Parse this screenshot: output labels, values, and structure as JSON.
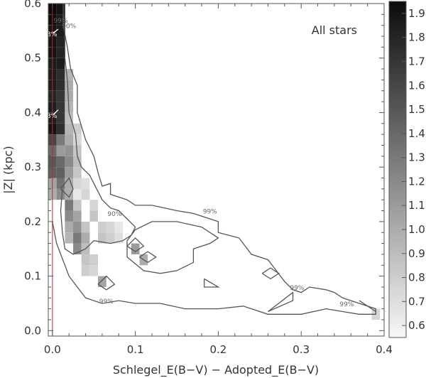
{
  "chart_data": {
    "type": "heatmap",
    "title": "",
    "annotation": "All stars",
    "xlabel": "Schlegel_E(B−V) − Adopted_E(B−V)",
    "ylabel": "|Z| (kpc)",
    "xlim": [
      -0.005,
      0.4
    ],
    "ylim": [
      -0.01,
      0.6
    ],
    "x_ticks": [
      "0.0",
      "0.1",
      "0.2",
      "0.3",
      "0.4"
    ],
    "y_ticks": [
      "0.0",
      "0.1",
      "0.2",
      "0.3",
      "0.4",
      "0.5",
      "0.6"
    ],
    "colorbar": {
      "range": [
        0.55,
        1.95
      ],
      "ticks": [
        "0.6",
        "0.7",
        "0.8",
        "0.9",
        "1.0",
        "1.1",
        "1.2",
        "1.3",
        "1.4",
        "1.5",
        "1.6",
        "1.7",
        "1.8",
        "1.9"
      ]
    },
    "grid": false,
    "cell_size": {
      "dx": 0.01,
      "dz": 0.02
    },
    "cells": [
      {
        "x": 0.0,
        "z": 0.59,
        "v": 1.95
      },
      {
        "x": 0.0,
        "z": 0.57,
        "v": 1.95
      },
      {
        "x": 0.0,
        "z": 0.55,
        "v": 1.9
      },
      {
        "x": 0.0,
        "z": 0.53,
        "v": 1.9
      },
      {
        "x": 0.0,
        "z": 0.51,
        "v": 1.9
      },
      {
        "x": 0.0,
        "z": 0.49,
        "v": 1.85
      },
      {
        "x": 0.0,
        "z": 0.47,
        "v": 1.85
      },
      {
        "x": 0.0,
        "z": 0.45,
        "v": 1.85
      },
      {
        "x": 0.0,
        "z": 0.43,
        "v": 1.8
      },
      {
        "x": 0.0,
        "z": 0.41,
        "v": 1.85
      },
      {
        "x": 0.0,
        "z": 0.39,
        "v": 1.85
      },
      {
        "x": 0.0,
        "z": 0.37,
        "v": 1.9
      },
      {
        "x": 0.0,
        "z": 0.35,
        "v": 1.6
      },
      {
        "x": 0.0,
        "z": 0.33,
        "v": 1.4
      },
      {
        "x": 0.0,
        "z": 0.31,
        "v": 1.5
      },
      {
        "x": 0.0,
        "z": 0.29,
        "v": 1.45
      },
      {
        "x": 0.0,
        "z": 0.27,
        "v": 1.05
      },
      {
        "x": 0.0,
        "z": 0.25,
        "v": 1.0
      },
      {
        "x": 0.01,
        "z": 0.59,
        "v": 1.9
      },
      {
        "x": 0.01,
        "z": 0.57,
        "v": 1.85
      },
      {
        "x": 0.01,
        "z": 0.55,
        "v": 1.85
      },
      {
        "x": 0.01,
        "z": 0.53,
        "v": 1.8
      },
      {
        "x": 0.01,
        "z": 0.51,
        "v": 1.8
      },
      {
        "x": 0.01,
        "z": 0.49,
        "v": 1.85
      },
      {
        "x": 0.01,
        "z": 0.47,
        "v": 1.75
      },
      {
        "x": 0.01,
        "z": 0.45,
        "v": 1.75
      },
      {
        "x": 0.01,
        "z": 0.43,
        "v": 1.7
      },
      {
        "x": 0.01,
        "z": 0.41,
        "v": 1.7
      },
      {
        "x": 0.01,
        "z": 0.39,
        "v": 1.7
      },
      {
        "x": 0.01,
        "z": 0.37,
        "v": 1.75
      },
      {
        "x": 0.01,
        "z": 0.35,
        "v": 1.3
      },
      {
        "x": 0.01,
        "z": 0.33,
        "v": 1.1
      },
      {
        "x": 0.01,
        "z": 0.31,
        "v": 1.4
      },
      {
        "x": 0.01,
        "z": 0.29,
        "v": 1.45
      },
      {
        "x": 0.01,
        "z": 0.27,
        "v": 1.35
      },
      {
        "x": 0.01,
        "z": 0.25,
        "v": 1.2
      },
      {
        "x": 0.02,
        "z": 0.47,
        "v": 0.95
      },
      {
        "x": 0.02,
        "z": 0.45,
        "v": 1.0
      },
      {
        "x": 0.02,
        "z": 0.43,
        "v": 1.0
      },
      {
        "x": 0.02,
        "z": 0.41,
        "v": 0.95
      },
      {
        "x": 0.02,
        "z": 0.39,
        "v": 0.9
      },
      {
        "x": 0.02,
        "z": 0.37,
        "v": 0.95
      },
      {
        "x": 0.02,
        "z": 0.35,
        "v": 1.0
      },
      {
        "x": 0.02,
        "z": 0.33,
        "v": 1.15
      },
      {
        "x": 0.02,
        "z": 0.31,
        "v": 1.2
      },
      {
        "x": 0.02,
        "z": 0.29,
        "v": 1.1
      },
      {
        "x": 0.02,
        "z": 0.27,
        "v": 1.0
      },
      {
        "x": 0.02,
        "z": 0.25,
        "v": 1.0
      },
      {
        "x": 0.02,
        "z": 0.23,
        "v": 1.3
      },
      {
        "x": 0.02,
        "z": 0.21,
        "v": 1.2
      },
      {
        "x": 0.02,
        "z": 0.19,
        "v": 1.0
      },
      {
        "x": 0.02,
        "z": 0.17,
        "v": 0.95
      },
      {
        "x": 0.03,
        "z": 0.37,
        "v": 0.8
      },
      {
        "x": 0.03,
        "z": 0.35,
        "v": 0.75
      },
      {
        "x": 0.03,
        "z": 0.33,
        "v": 0.85
      },
      {
        "x": 0.03,
        "z": 0.31,
        "v": 0.9
      },
      {
        "x": 0.03,
        "z": 0.29,
        "v": 0.85
      },
      {
        "x": 0.03,
        "z": 0.27,
        "v": 0.75
      },
      {
        "x": 0.03,
        "z": 0.25,
        "v": 0.65
      },
      {
        "x": 0.03,
        "z": 0.23,
        "v": 0.85
      },
      {
        "x": 0.03,
        "z": 0.21,
        "v": 1.05
      },
      {
        "x": 0.03,
        "z": 0.19,
        "v": 1.15
      },
      {
        "x": 0.03,
        "z": 0.17,
        "v": 1.3
      },
      {
        "x": 0.03,
        "z": 0.15,
        "v": 1.2
      },
      {
        "x": 0.04,
        "z": 0.27,
        "v": 0.7
      },
      {
        "x": 0.04,
        "z": 0.25,
        "v": 0.75
      },
      {
        "x": 0.04,
        "z": 0.19,
        "v": 0.85
      },
      {
        "x": 0.04,
        "z": 0.17,
        "v": 1.0
      },
      {
        "x": 0.04,
        "z": 0.15,
        "v": 0.9
      },
      {
        "x": 0.04,
        "z": 0.13,
        "v": 0.85
      },
      {
        "x": 0.04,
        "z": 0.11,
        "v": 0.8
      },
      {
        "x": 0.05,
        "z": 0.23,
        "v": 0.75
      },
      {
        "x": 0.05,
        "z": 0.21,
        "v": 0.85
      },
      {
        "x": 0.05,
        "z": 0.13,
        "v": 0.8
      },
      {
        "x": 0.05,
        "z": 0.11,
        "v": 0.75
      },
      {
        "x": 0.06,
        "z": 0.19,
        "v": 0.8
      },
      {
        "x": 0.06,
        "z": 0.17,
        "v": 0.85
      },
      {
        "x": 0.06,
        "z": 0.09,
        "v": 1.05
      },
      {
        "x": 0.07,
        "z": 0.19,
        "v": 0.75
      },
      {
        "x": 0.07,
        "z": 0.17,
        "v": 0.8
      },
      {
        "x": 0.08,
        "z": 0.19,
        "v": 0.65
      },
      {
        "x": 0.08,
        "z": 0.17,
        "v": 0.7
      },
      {
        "x": 0.1,
        "z": 0.15,
        "v": 1.1
      },
      {
        "x": 0.11,
        "z": 0.13,
        "v": 1.0
      },
      {
        "x": 0.39,
        "z": 0.03,
        "v": 0.75
      }
    ],
    "contours": [
      {
        "label": "99%",
        "labels_at": [
          [
            0.19,
            0.215
          ],
          [
            0.295,
            0.075
          ],
          [
            0.065,
            0.05
          ],
          [
            0.355,
            0.045
          ],
          [
            0.01,
            0.565
          ]
        ],
        "paths": [
          [
            [
              0.013,
              0.6
            ],
            [
              0.013,
              0.56
            ],
            [
              0.018,
              0.52
            ],
            [
              0.022,
              0.48
            ],
            [
              0.03,
              0.45
            ],
            [
              0.03,
              0.4
            ],
            [
              0.04,
              0.35
            ],
            [
              0.05,
              0.32
            ],
            [
              0.055,
              0.29
            ],
            [
              0.06,
              0.265
            ],
            [
              0.07,
              0.27
            ],
            [
              0.07,
              0.25
            ],
            [
              0.09,
              0.24
            ],
            [
              0.1,
              0.23
            ],
            [
              0.12,
              0.23
            ],
            [
              0.15,
              0.22
            ],
            [
              0.17,
              0.215
            ],
            [
              0.2,
              0.2
            ],
            [
              0.2,
              0.18
            ],
            [
              0.225,
              0.17
            ],
            [
              0.23,
              0.16
            ],
            [
              0.24,
              0.14
            ],
            [
              0.26,
              0.13
            ],
            [
              0.27,
              0.11
            ],
            [
              0.28,
              0.09
            ],
            [
              0.29,
              0.075
            ],
            [
              0.3,
              0.07
            ],
            [
              0.31,
              0.08
            ],
            [
              0.33,
              0.075
            ],
            [
              0.34,
              0.07
            ],
            [
              0.35,
              0.06
            ],
            [
              0.37,
              0.05
            ],
            [
              0.39,
              0.04
            ],
            [
              0.39,
              0.03
            ],
            [
              0.37,
              0.03
            ],
            [
              0.35,
              0.035
            ],
            [
              0.33,
              0.04
            ],
            [
              0.3,
              0.03
            ],
            [
              0.26,
              0.03
            ],
            [
              0.23,
              0.045
            ],
            [
              0.2,
              0.04
            ],
            [
              0.16,
              0.04
            ],
            [
              0.13,
              0.05
            ],
            [
              0.1,
              0.05
            ],
            [
              0.08,
              0.055
            ],
            [
              0.06,
              0.05
            ],
            [
              0.04,
              0.06
            ],
            [
              0.03,
              0.08
            ],
            [
              0.02,
              0.1
            ],
            [
              0.015,
              0.12
            ],
            [
              0.01,
              0.14
            ],
            [
              0.005,
              0.16
            ],
            [
              0.0,
              0.2
            ]
          ],
          [
            [
              0.09,
              0.135
            ],
            [
              0.11,
              0.11
            ],
            [
              0.13,
              0.105
            ],
            [
              0.15,
              0.11
            ],
            [
              0.17,
              0.125
            ],
            [
              0.17,
              0.15
            ],
            [
              0.19,
              0.16
            ],
            [
              0.2,
              0.17
            ],
            [
              0.18,
              0.19
            ],
            [
              0.15,
              0.2
            ],
            [
              0.12,
              0.2
            ],
            [
              0.1,
              0.185
            ],
            [
              0.09,
              0.165
            ],
            [
              0.09,
              0.135
            ]
          ],
          [
            [
              0.183,
              0.095
            ],
            [
              0.2,
              0.08
            ],
            [
              0.183,
              0.08
            ],
            [
              0.183,
              0.095
            ]
          ],
          [
            [
              0.26,
              0.035
            ],
            [
              0.29,
              0.07
            ],
            [
              0.29,
              0.055
            ],
            [
              0.26,
              0.035
            ]
          ],
          [
            [
              0.253,
              0.105
            ],
            [
              0.263,
              0.115
            ],
            [
              0.273,
              0.105
            ],
            [
              0.263,
              0.095
            ],
            [
              0.253,
              0.105
            ]
          ],
          [
            [
              0.37,
              0.055
            ],
            [
              0.385,
              0.04
            ],
            [
              0.39,
              0.035
            ]
          ]
        ]
      },
      {
        "label": "90%",
        "labels_at": [
          [
            0.075,
            0.21
          ],
          [
            0.02,
            0.555
          ]
        ],
        "paths": [
          [
            [
              0.015,
              0.6
            ],
            [
              0.015,
              0.5
            ],
            [
              0.018,
              0.46
            ],
            [
              0.02,
              0.4
            ],
            [
              0.028,
              0.36
            ],
            [
              0.03,
              0.32
            ],
            [
              0.035,
              0.3
            ],
            [
              0.045,
              0.285
            ],
            [
              0.05,
              0.27
            ],
            [
              0.06,
              0.24
            ],
            [
              0.07,
              0.225
            ],
            [
              0.08,
              0.22
            ],
            [
              0.09,
              0.205
            ],
            [
              0.1,
              0.19
            ],
            [
              0.095,
              0.175
            ],
            [
              0.085,
              0.165
            ],
            [
              0.07,
              0.16
            ],
            [
              0.05,
              0.165
            ],
            [
              0.04,
              0.15
            ],
            [
              0.025,
              0.14
            ],
            [
              0.015,
              0.15
            ],
            [
              0.012,
              0.18
            ],
            [
              0.01,
              0.22
            ],
            [
              0.012,
              0.26
            ]
          ],
          [
            [
              0.09,
              0.155
            ],
            [
              0.1,
              0.145
            ],
            [
              0.11,
              0.155
            ],
            [
              0.1,
              0.17
            ],
            [
              0.09,
              0.155
            ]
          ],
          [
            [
              0.105,
              0.135
            ],
            [
              0.115,
              0.125
            ],
            [
              0.125,
              0.135
            ],
            [
              0.115,
              0.145
            ],
            [
              0.105,
              0.135
            ]
          ],
          [
            [
              0.055,
              0.085
            ],
            [
              0.065,
              0.075
            ],
            [
              0.075,
              0.085
            ],
            [
              0.065,
              0.1
            ],
            [
              0.055,
              0.085
            ]
          ],
          [
            [
              0.01,
              0.26
            ],
            [
              0.02,
              0.245
            ],
            [
              0.025,
              0.26
            ],
            [
              0.02,
              0.28
            ],
            [
              0.01,
              0.26
            ]
          ]
        ]
      },
      {
        "label": "33%",
        "labels_at": [
          [
            -0.003,
            0.54
          ],
          [
            -0.003,
            0.39
          ]
        ],
        "paths": [
          [
            [
              0.0,
              0.545
            ],
            [
              0.007,
              0.553
            ]
          ],
          [
            [
              0.0,
              0.395
            ],
            [
              0.007,
              0.405
            ]
          ]
        ]
      }
    ],
    "reference_line": {
      "x": 0.0,
      "color": "#cc2222"
    }
  }
}
